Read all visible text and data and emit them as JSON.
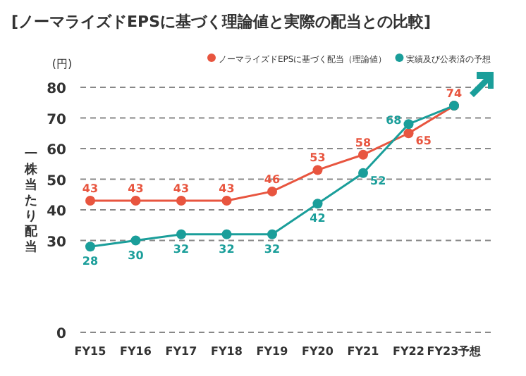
{
  "chart_data": {
    "type": "line",
    "title": "[ノーマライズドEPSに基づく理論値と実際の配当との比較]",
    "ylabel": "一株当たり配当",
    "annotations": [
      "(円)"
    ],
    "categories": [
      "FY15",
      "FY16",
      "FY17",
      "FY18",
      "FY19",
      "FY20",
      "FY21",
      "FY22",
      "FY23予想"
    ],
    "series": [
      {
        "name": "ノーマライズドEPSに基づく配当（理論値）",
        "color": "#e8553f",
        "values": [
          43,
          43,
          43,
          43,
          46,
          53,
          58,
          65,
          74
        ],
        "value_labels": [
          "43",
          "43",
          "43",
          "43",
          "46",
          "53",
          "58",
          "65",
          "74"
        ]
      },
      {
        "name": "実績及び公表済の予想",
        "color": "#1a9e9a",
        "values": [
          28,
          30,
          32,
          32,
          32,
          42,
          52,
          68,
          74
        ],
        "value_labels": [
          "28",
          "30",
          "32",
          "32",
          "32",
          "42",
          "52",
          "68",
          null
        ]
      }
    ],
    "ylim": [
      0,
      80
    ],
    "yticks": [
      0,
      30,
      40,
      50,
      60,
      70,
      80
    ],
    "grid": "y",
    "marker": "circle",
    "line_style": "solid",
    "legend": "top"
  }
}
